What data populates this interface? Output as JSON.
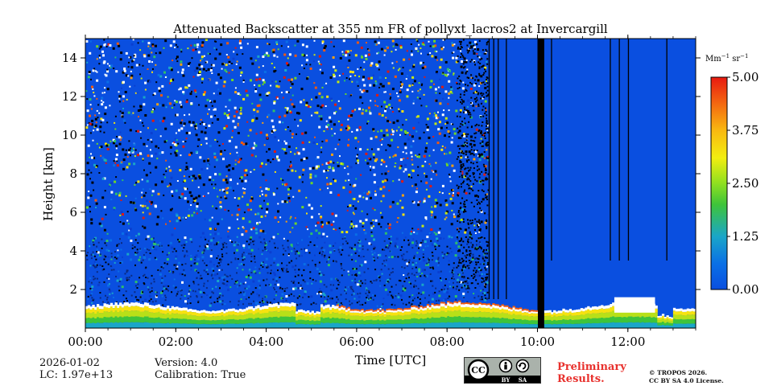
{
  "chart_data": {
    "type": "heatmap",
    "title": "Attenuated Backscatter at 355 nm FR of pollyxt_lacros2 at Invercargill",
    "xlabel": "Time [UTC]",
    "ylabel": "Height [km]",
    "xlim": [
      0,
      13.5
    ],
    "ylim": [
      0,
      15
    ],
    "x_ticks": [
      {
        "value": 0,
        "label": "00:00"
      },
      {
        "value": 2,
        "label": "02:00"
      },
      {
        "value": 4,
        "label": "04:00"
      },
      {
        "value": 6,
        "label": "06:00"
      },
      {
        "value": 8,
        "label": "08:00"
      },
      {
        "value": 10,
        "label": "10:00"
      },
      {
        "value": 12,
        "label": "12:00"
      }
    ],
    "y_ticks": [
      {
        "value": 2,
        "label": "2"
      },
      {
        "value": 4,
        "label": "4"
      },
      {
        "value": 6,
        "label": "6"
      },
      {
        "value": 8,
        "label": "8"
      },
      {
        "value": 10,
        "label": "10"
      },
      {
        "value": 12,
        "label": "12"
      },
      {
        "value": 14,
        "label": "14"
      }
    ],
    "colorbar": {
      "unit": "Mm",
      "unit_exp1": "−1",
      "unit_mid": " sr",
      "unit_exp2": "−1",
      "min": 0,
      "max": 5,
      "ticks": [
        {
          "value": 0,
          "label": "0.00"
        },
        {
          "value": 1.25,
          "label": "1.25"
        },
        {
          "value": 2.5,
          "label": "2.50"
        },
        {
          "value": 3.75,
          "label": "3.75"
        },
        {
          "value": 5,
          "label": "5.00"
        }
      ]
    },
    "regions": [
      {
        "name": "noisy-daytime-signal",
        "time_range": [
          0,
          8.9
        ],
        "height_range": [
          0.3,
          15
        ]
      },
      {
        "name": "no-data-gap",
        "time_range": [
          10.0,
          10.15
        ],
        "height_range": [
          0,
          15
        ]
      },
      {
        "name": "low-signal-night",
        "time_range": [
          8.9,
          13.5
        ],
        "height_range": [
          1,
          15
        ]
      },
      {
        "name": "boundary-layer-aerosol",
        "time_range": [
          0,
          13.5
        ],
        "height_range": [
          0,
          1.3
        ]
      }
    ]
  },
  "footer": {
    "date": "2026-01-02",
    "lc": "LC: 1.97e+13",
    "version": "Version: 4.0",
    "calibration": "Calibration: True",
    "preliminary_line1": "Preliminary",
    "preliminary_line2": "Results.",
    "copyright_line1": "© TROPOS 2026.",
    "copyright_line2": "CC BY SA 4.0 License.",
    "cc_badge": "CC",
    "by_label": "BY",
    "sa_label": "SA"
  },
  "colors": {
    "background_low": "#0a4fe0",
    "gap": "#000000"
  }
}
